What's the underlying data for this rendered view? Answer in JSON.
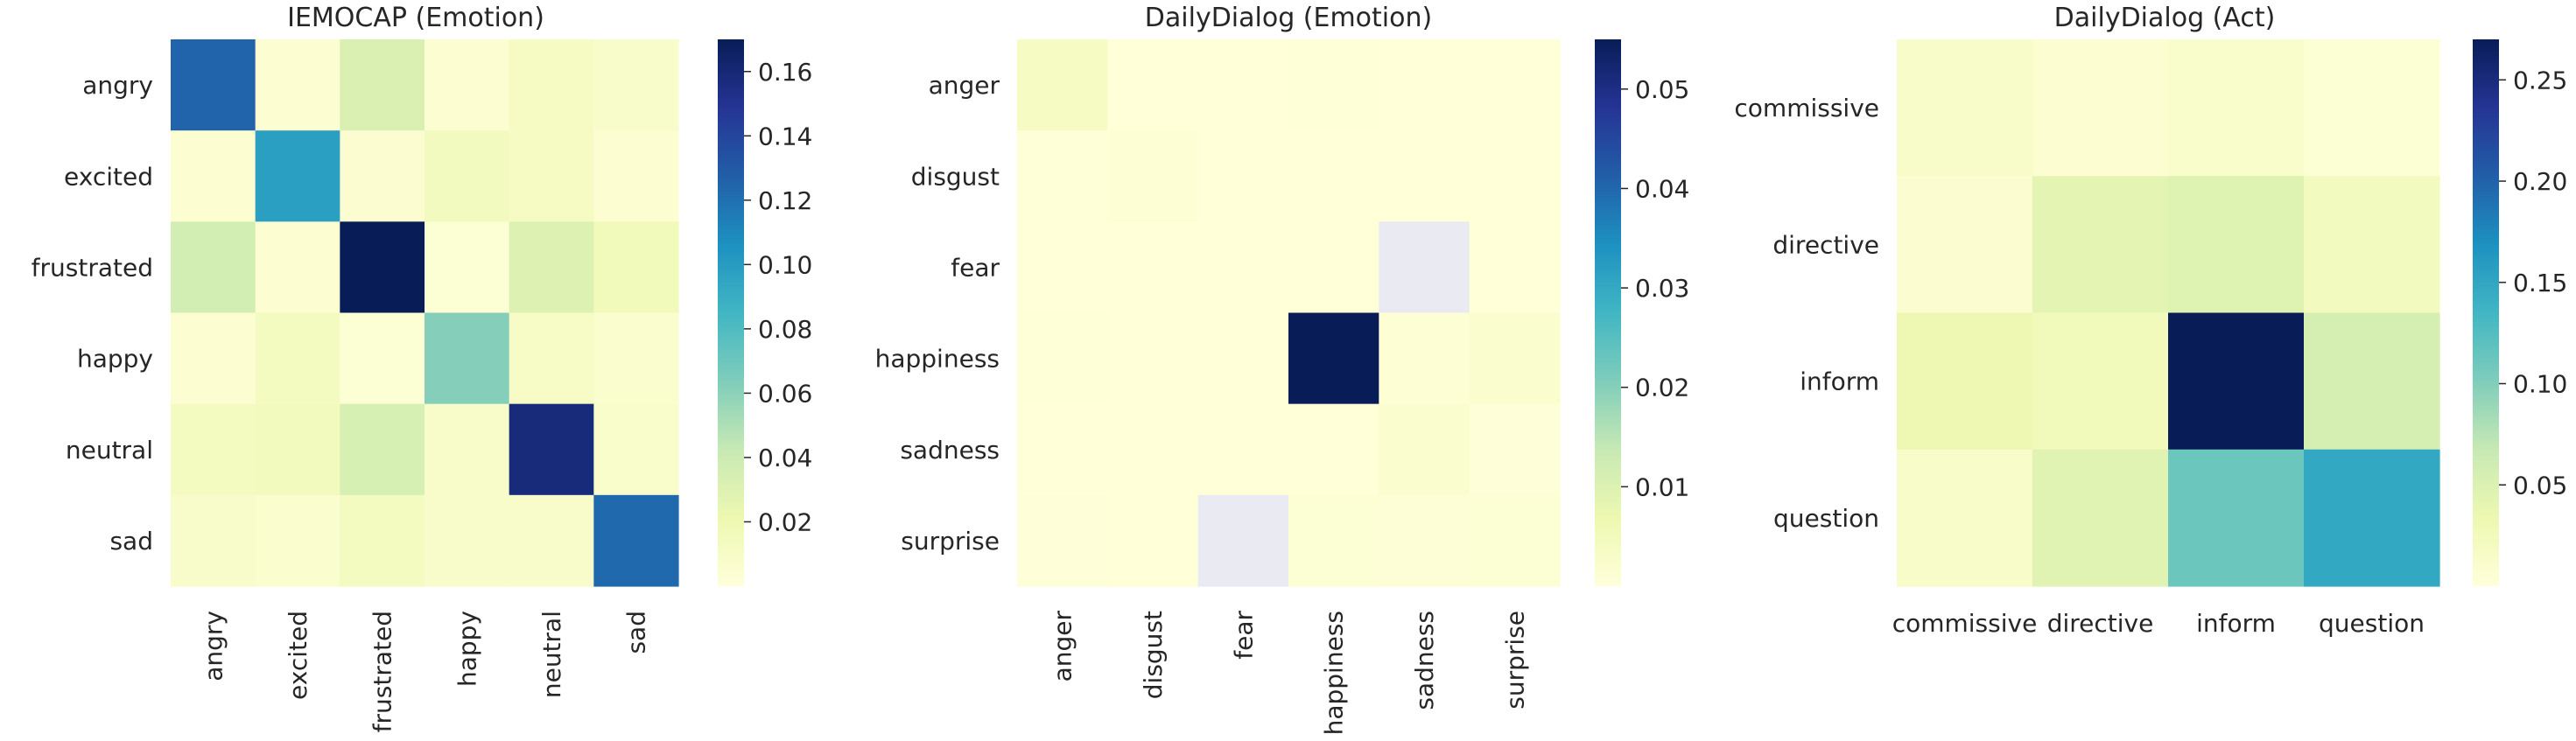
{
  "chart_data": [
    {
      "type": "heatmap",
      "title": "IEMOCAP (Emotion)",
      "colormap": "YlGnBu",
      "rows": [
        "angry",
        "excited",
        "frustrated",
        "happy",
        "neutral",
        "sad"
      ],
      "cols": [
        "angry",
        "excited",
        "frustrated",
        "happy",
        "neutral",
        "sad"
      ],
      "values": [
        [
          0.125,
          0.004,
          0.032,
          0.004,
          0.011,
          0.008
        ],
        [
          0.004,
          0.098,
          0.005,
          0.014,
          0.011,
          0.004
        ],
        [
          0.036,
          0.004,
          0.17,
          0.003,
          0.03,
          0.016
        ],
        [
          0.004,
          0.013,
          0.003,
          0.062,
          0.01,
          0.006
        ],
        [
          0.013,
          0.015,
          0.034,
          0.009,
          0.158,
          0.007
        ],
        [
          0.008,
          0.006,
          0.013,
          0.008,
          0.008,
          0.123
        ]
      ],
      "vmin": 0.0,
      "vmax": 0.17,
      "colorbar_ticks": [
        "0.02",
        "0.04",
        "0.06",
        "0.08",
        "0.10",
        "0.12",
        "0.14",
        "0.16"
      ],
      "colorbar_values": [
        0.02,
        0.04,
        0.06,
        0.08,
        0.1,
        0.12,
        0.14,
        0.16
      ]
    },
    {
      "type": "heatmap",
      "title": "DailyDialog (Emotion)",
      "colormap": "YlGnBu",
      "nan_color": "#eaeaf2",
      "rows": [
        "anger",
        "disgust",
        "fear",
        "happiness",
        "sadness",
        "surprise"
      ],
      "cols": [
        "anger",
        "disgust",
        "fear",
        "happiness",
        "sadness",
        "surprise"
      ],
      "values": [
        [
          0.004,
          0.0001,
          0.0001,
          0.0003,
          0.0001,
          0.0001
        ],
        [
          0.0003,
          0.0008,
          0.0001,
          0.0001,
          0.0001,
          0.0001
        ],
        [
          0.0001,
          0.0001,
          0.0001,
          0.0001,
          null,
          0.0001
        ],
        [
          0.0003,
          0.0001,
          0.0001,
          0.055,
          0.0008,
          0.002
        ],
        [
          0.0001,
          0.0001,
          0.0001,
          0.0001,
          0.002,
          0.0002
        ],
        [
          0.0002,
          0.0001,
          null,
          0.001,
          0.0005,
          0.001
        ]
      ],
      "vmin": 0.0,
      "vmax": 0.055,
      "colorbar_ticks": [
        "0.01",
        "0.02",
        "0.03",
        "0.04",
        "0.05"
      ],
      "colorbar_values": [
        0.01,
        0.02,
        0.03,
        0.04,
        0.05
      ]
    },
    {
      "type": "heatmap",
      "title": "DailyDialog (Act)",
      "colormap": "YlGnBu",
      "rows": [
        "commissive",
        "directive",
        "inform",
        "question"
      ],
      "cols": [
        "commissive",
        "directive",
        "inform",
        "question"
      ],
      "values": [
        [
          0.014,
          0.006,
          0.012,
          0.005
        ],
        [
          0.008,
          0.042,
          0.047,
          0.022
        ],
        [
          0.032,
          0.026,
          0.27,
          0.055
        ],
        [
          0.014,
          0.045,
          0.112,
          0.148
        ]
      ],
      "vmin": 0.0,
      "vmax": 0.27,
      "colorbar_ticks": [
        "0.05",
        "0.10",
        "0.15",
        "0.20",
        "0.25"
      ],
      "colorbar_values": [
        0.05,
        0.1,
        0.15,
        0.2,
        0.25
      ]
    }
  ]
}
